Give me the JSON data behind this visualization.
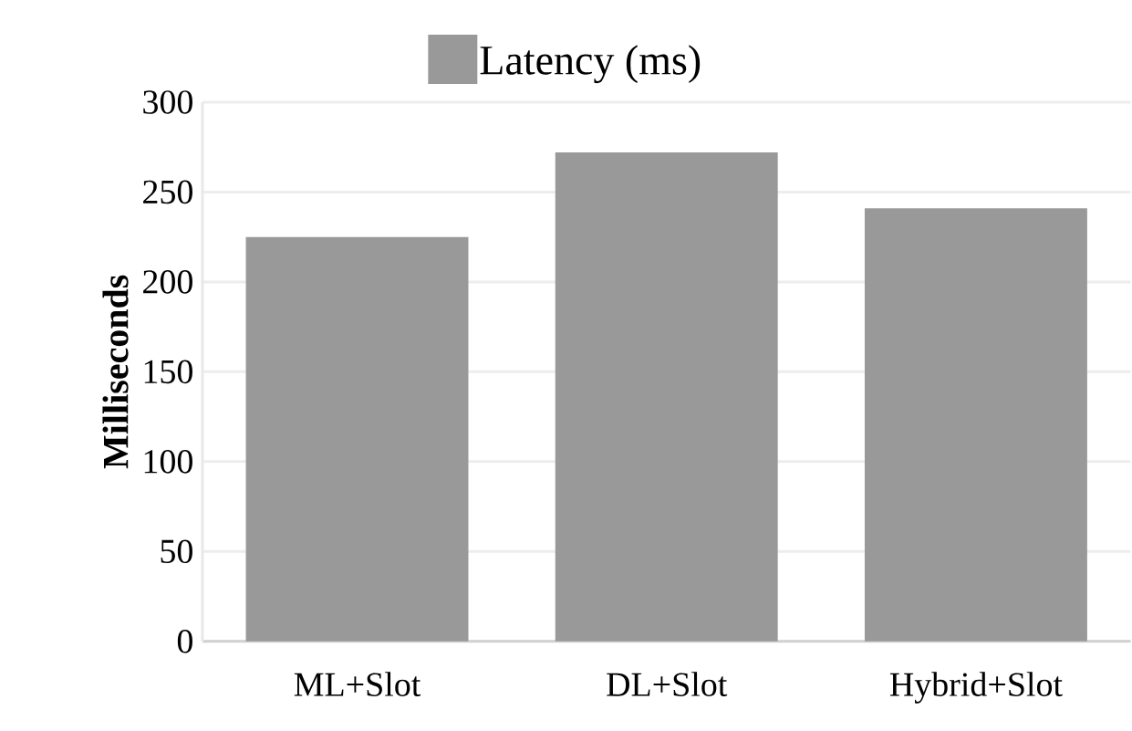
{
  "chart_data": {
    "type": "bar",
    "ylabel": "Milliseconds",
    "categories": [
      "ML+Slot",
      "DL+Slot",
      "Hybrid+Slot"
    ],
    "series": [
      {
        "name": "Latency (ms)",
        "color": "#999999",
        "values": [
          225,
          272,
          241
        ]
      }
    ],
    "ylim": [
      0,
      300
    ],
    "yticks": [
      0,
      50,
      100,
      150,
      200,
      250,
      300
    ],
    "grid": "y",
    "legend": "top"
  }
}
